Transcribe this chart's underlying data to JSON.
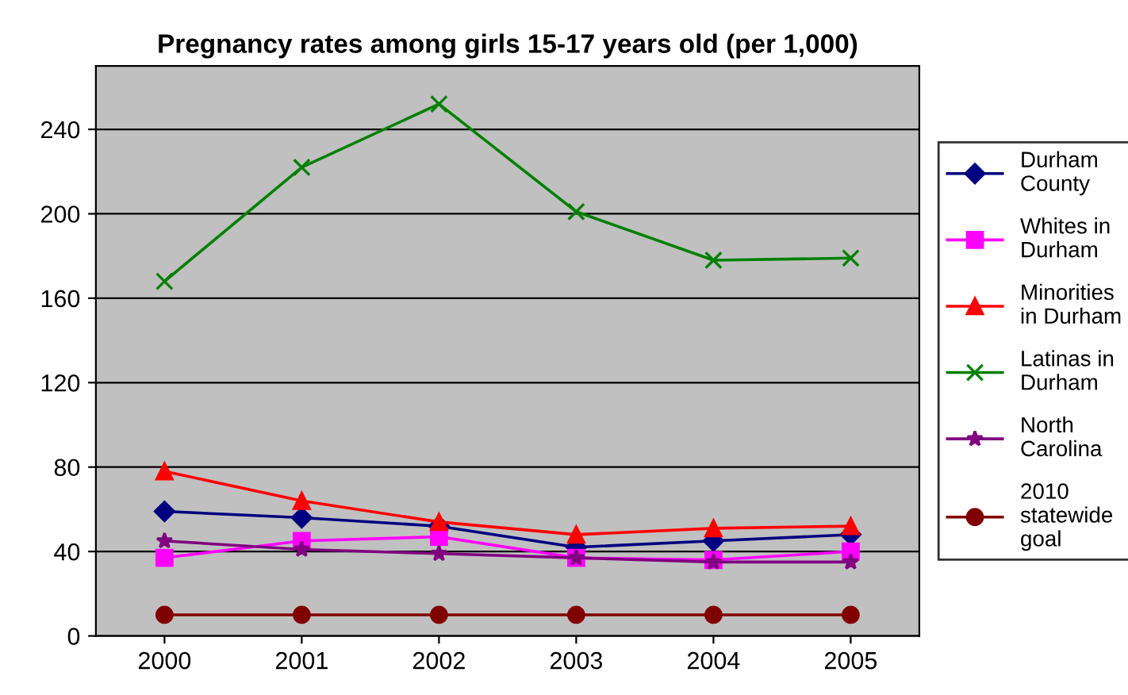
{
  "chart_data": {
    "type": "line",
    "title": "Pregnancy rates among girls 15-17 years old (per 1,000)",
    "categories": [
      "2000",
      "2001",
      "2002",
      "2003",
      "2004",
      "2005"
    ],
    "series": [
      {
        "name": "Durham County",
        "color": "#000080",
        "marker": "diamond",
        "values": [
          59,
          56,
          52,
          42,
          45,
          48
        ]
      },
      {
        "name": "Whites in Durham",
        "color": "#ff00ff",
        "marker": "square",
        "values": [
          37,
          45,
          47,
          37,
          36,
          40
        ]
      },
      {
        "name": "Minorities in Durham",
        "color": "#ff0000",
        "marker": "triangle",
        "values": [
          78,
          64,
          54,
          48,
          51,
          52
        ]
      },
      {
        "name": "Latinas in Durham",
        "color": "#008000",
        "marker": "cross",
        "values": [
          168,
          222,
          252,
          201,
          178,
          179
        ]
      },
      {
        "name": "North Carolina",
        "color": "#800080",
        "marker": "star",
        "values": [
          45,
          41,
          39,
          37,
          35,
          35
        ]
      },
      {
        "name": "2010 statewide goal",
        "color": "#800000",
        "marker": "circle",
        "values": [
          10,
          10,
          10,
          10,
          10,
          10
        ]
      }
    ],
    "ylim": [
      0,
      270
    ],
    "yticks": [
      0,
      40,
      80,
      120,
      160,
      200,
      240
    ],
    "grid": "y",
    "legend": "right"
  }
}
